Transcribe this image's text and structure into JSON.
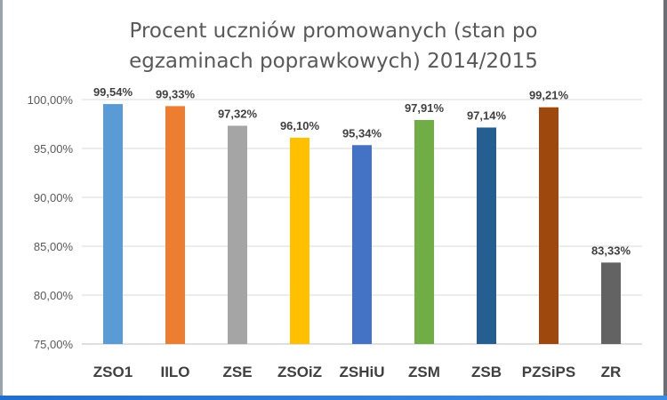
{
  "chart_data": {
    "type": "bar",
    "title_line1": "Procent uczniów promowanych (stan po",
    "title_line2": "egzaminach poprawkowych) 2014/2015",
    "categories": [
      "ZSO1",
      "IILO",
      "ZSE",
      "ZSOiZ",
      "ZSHiU",
      "ZSM",
      "ZSB",
      "PZSiPS",
      "ZR"
    ],
    "values": [
      99.54,
      99.33,
      97.32,
      96.1,
      95.34,
      97.91,
      97.14,
      99.21,
      83.33
    ],
    "value_labels": [
      "99,54%",
      "99,33%",
      "97,32%",
      "96,10%",
      "95,34%",
      "97,91%",
      "97,14%",
      "99,21%",
      "83,33%"
    ],
    "colors": [
      "#5b9bd5",
      "#ed7d31",
      "#a5a5a5",
      "#ffc000",
      "#4472c4",
      "#70ad47",
      "#255e91",
      "#9e480e",
      "#636363"
    ],
    "yticks": [
      "75,00%",
      "80,00%",
      "85,00%",
      "90,00%",
      "95,00%",
      "100,00%"
    ],
    "ytick_values": [
      75,
      80,
      85,
      90,
      95,
      100
    ],
    "ylim": [
      75,
      100
    ],
    "xlabel": "",
    "ylabel": "",
    "grid": "horizontal",
    "legend": "none"
  }
}
